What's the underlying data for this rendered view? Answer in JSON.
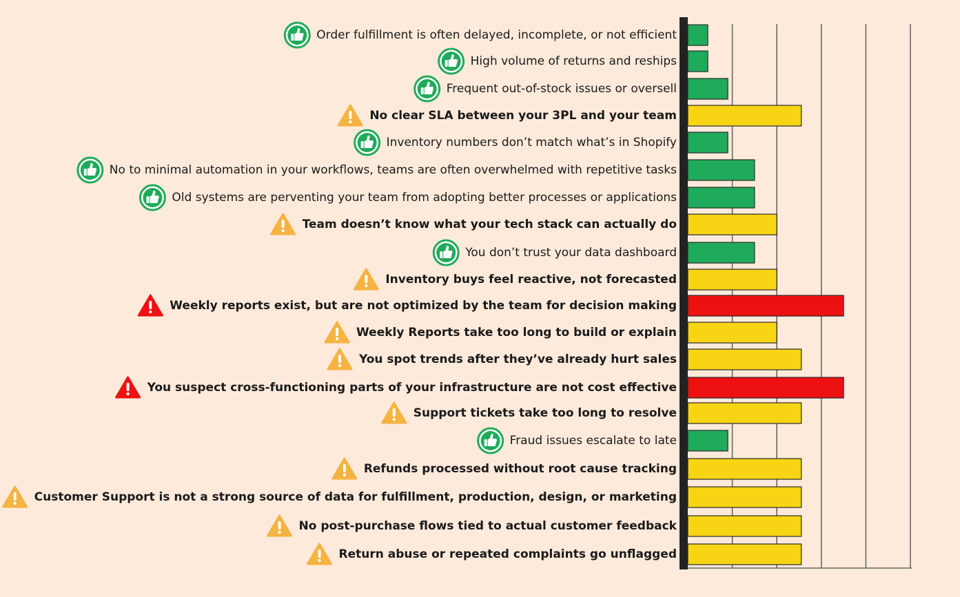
{
  "colors": {
    "background": "#fdeadb",
    "green": "#1fab5b",
    "yellow": "#f7d515",
    "red": "#ee1111",
    "axis": "#222222",
    "grid": "#666666"
  },
  "chart_data": {
    "type": "bar",
    "orientation": "horizontal",
    "title": "",
    "xlabel": "",
    "ylabel": "",
    "xlim": [
      0,
      5
    ],
    "grid": true,
    "scale": "1 unit = one gridline interval",
    "rows": [
      {
        "label": "Order fulfillment is often delayed, incomplete, or not efficient",
        "value": 0.45,
        "status": "good",
        "icon": "thumbs-up-icon",
        "bold": false
      },
      {
        "label": "High volume of returns and reships",
        "value": 0.45,
        "status": "good",
        "icon": "thumbs-up-icon",
        "bold": false
      },
      {
        "label": "Frequent out-of-stock issues or oversell",
        "value": 0.9,
        "status": "good",
        "icon": "thumbs-up-icon",
        "bold": false
      },
      {
        "label": "No clear SLA between your 3PL and your team",
        "value": 2.55,
        "status": "warning",
        "icon": "warning-icon",
        "bold": true
      },
      {
        "label": "Inventory numbers don’t match what’s in Shopify",
        "value": 0.9,
        "status": "good",
        "icon": "thumbs-up-icon",
        "bold": false
      },
      {
        "label": "No to minimal automation in your workflows, teams are often overwhelmed with repetitive tasks",
        "value": 1.5,
        "status": "good",
        "icon": "thumbs-up-icon",
        "bold": false
      },
      {
        "label": "Old systems are perventing your team from adopting better processes or applications",
        "value": 1.5,
        "status": "good",
        "icon": "thumbs-up-icon",
        "bold": false
      },
      {
        "label": "Team doesn’t know what your tech stack can actually do",
        "value": 2.0,
        "status": "warning",
        "icon": "warning-icon",
        "bold": true
      },
      {
        "label": "You don’t trust your data dashboard",
        "value": 1.5,
        "status": "good",
        "icon": "thumbs-up-icon",
        "bold": false
      },
      {
        "label": "Inventory buys feel reactive, not forecasted",
        "value": 2.0,
        "status": "warning",
        "icon": "warning-icon",
        "bold": true
      },
      {
        "label": "Weekly reports exist, but are not optimized by the team for decision making",
        "value": 3.5,
        "status": "critical",
        "icon": "alert-icon",
        "bold": true
      },
      {
        "label": "Weekly Reports take too long to build or explain",
        "value": 2.0,
        "status": "warning",
        "icon": "warning-icon",
        "bold": true
      },
      {
        "label": "You spot trends after they’ve already hurt sales",
        "value": 2.55,
        "status": "warning",
        "icon": "warning-icon",
        "bold": true
      },
      {
        "label": "You suspect cross-functioning parts of your infrastructure are not cost effective",
        "value": 3.5,
        "status": "critical",
        "icon": "alert-icon",
        "bold": true
      },
      {
        "label": "Support tickets take too long to resolve",
        "value": 2.55,
        "status": "warning",
        "icon": "warning-icon",
        "bold": true
      },
      {
        "label": "Fraud issues escalate to late",
        "value": 0.9,
        "status": "good",
        "icon": "thumbs-up-icon",
        "bold": false
      },
      {
        "label": "Refunds processed without root cause tracking",
        "value": 2.55,
        "status": "warning",
        "icon": "warning-icon",
        "bold": true
      },
      {
        "label": "Customer Support is not a strong source of data for fulfillment, production, design, or marketing",
        "value": 2.55,
        "status": "warning",
        "icon": "warning-icon",
        "bold": true
      },
      {
        "label": "No post-purchase flows tied to actual customer feedback",
        "value": 2.55,
        "status": "warning",
        "icon": "warning-icon",
        "bold": true
      },
      {
        "label": "Return abuse or repeated complaints go unflagged",
        "value": 2.55,
        "status": "warning",
        "icon": "warning-icon",
        "bold": true
      }
    ]
  }
}
